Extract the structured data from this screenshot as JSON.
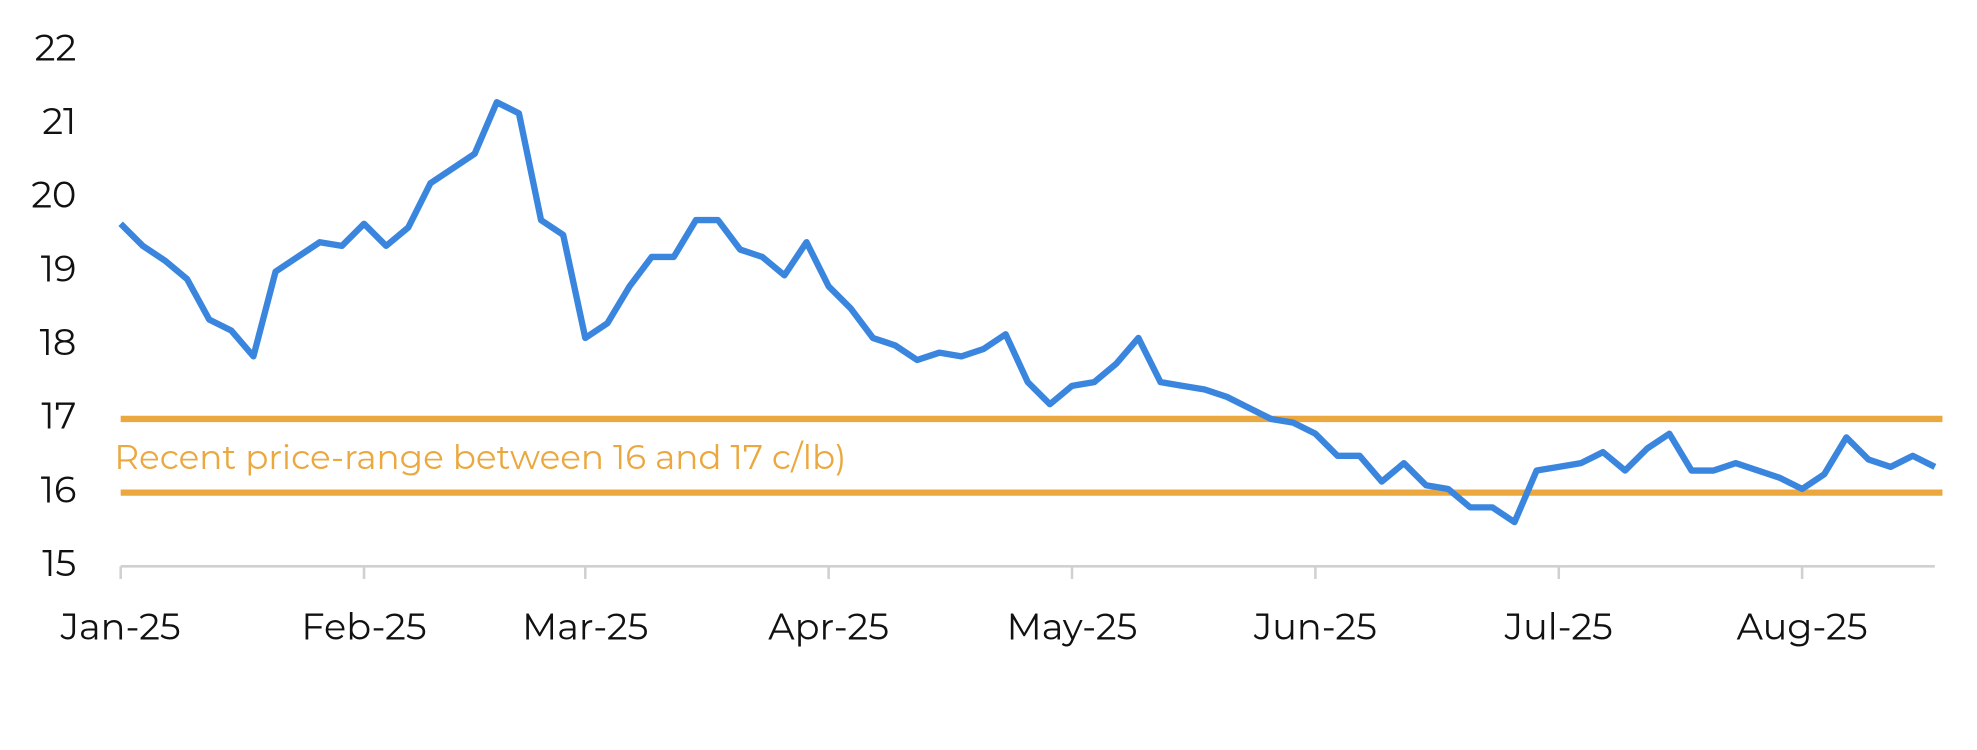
{
  "chart_data": {
    "type": "line",
    "categories": [
      "Jan-25",
      null,
      null,
      null,
      null,
      null,
      null,
      null,
      null,
      null,
      null,
      "Feb-25",
      null,
      null,
      null,
      null,
      null,
      null,
      null,
      null,
      null,
      "Mar-25",
      null,
      null,
      null,
      null,
      null,
      null,
      null,
      null,
      null,
      null,
      "Apr-25",
      null,
      null,
      null,
      null,
      null,
      null,
      null,
      null,
      null,
      null,
      "May-25",
      null,
      null,
      null,
      null,
      null,
      null,
      null,
      null,
      null,
      null,
      "Jun-25",
      null,
      null,
      null,
      null,
      null,
      null,
      null,
      null,
      null,
      null,
      "Jul-25",
      null,
      null,
      null,
      null,
      null,
      null,
      null,
      null,
      null,
      null,
      "Aug-25",
      null,
      null,
      null,
      null,
      null,
      null
    ],
    "series": [
      {
        "color": "#3a86de",
        "values": [
          19.65,
          19.35,
          19.15,
          18.9,
          18.35,
          18.2,
          17.85,
          19.0,
          19.2,
          19.4,
          19.35,
          19.65,
          19.35,
          19.6,
          20.2,
          20.4,
          20.6,
          21.3,
          21.15,
          19.7,
          19.5,
          18.1,
          18.3,
          18.8,
          19.2,
          19.2,
          19.7,
          19.7,
          19.3,
          19.2,
          18.95,
          19.4,
          18.8,
          18.5,
          18.1,
          18.0,
          17.8,
          17.9,
          17.85,
          17.95,
          18.15,
          17.5,
          17.2,
          17.45,
          17.5,
          17.75,
          18.1,
          17.5,
          17.45,
          17.4,
          17.3,
          17.15,
          17.0,
          16.95,
          16.8,
          16.5,
          16.5,
          16.15,
          16.4,
          16.1,
          16.05,
          15.8,
          15.8,
          15.6,
          16.3,
          16.35,
          16.4,
          16.55,
          16.3,
          16.6,
          16.8,
          16.3,
          16.3,
          16.4,
          16.3,
          16.2,
          16.05,
          16.25,
          16.75,
          16.45,
          16.35,
          16.5,
          16.35
        ]
      }
    ],
    "ylim": [
      15,
      22
    ],
    "yticks": [
      15,
      16,
      17,
      18,
      19,
      20,
      21,
      22
    ],
    "reference_lines": [
      16,
      17
    ],
    "reference_color": "#eba83f",
    "annotation": "Recent price-range between 16 and 17 c/lb)"
  }
}
